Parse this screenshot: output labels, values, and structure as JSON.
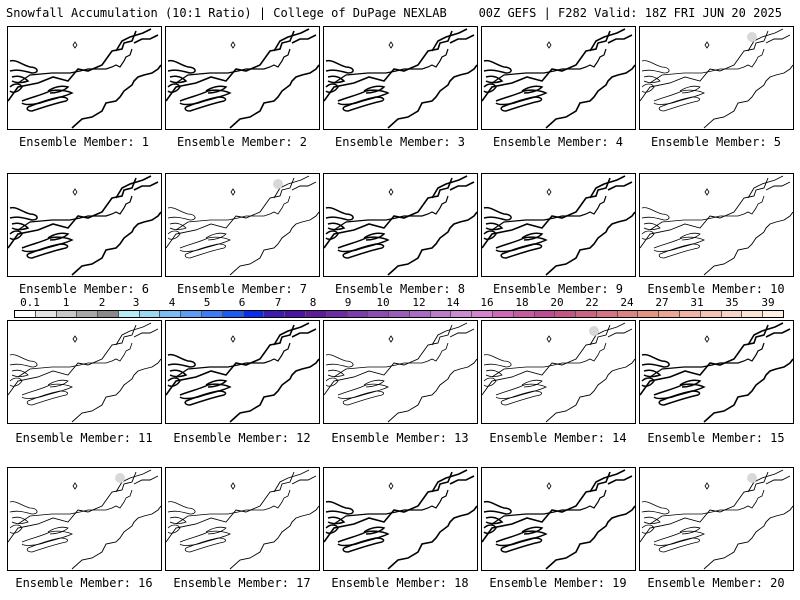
{
  "header": {
    "left_title": "Snowfall Accumulation (10:1 Ratio) | College of DuPage NEXLAB",
    "right_title": "00Z GEFS | F282 Valid: 18Z FRI JUN 20 2025"
  },
  "colorbar": {
    "ticks": [
      "0.1",
      "1",
      "2",
      "3",
      "4",
      "5",
      "6",
      "7",
      "8",
      "9",
      "10",
      "12",
      "14",
      "16",
      "18",
      "20",
      "22",
      "24",
      "27",
      "31",
      "35",
      "39"
    ],
    "colors": [
      "#ffffff",
      "#e4e4e4",
      "#c8c8c8",
      "#a8a8a8",
      "#8a8a8a",
      "#b4eef4",
      "#9cd8f4",
      "#7cbcf4",
      "#5c9cf4",
      "#3c7cf4",
      "#1c5cf4",
      "#0b2cee",
      "#3c1cb4",
      "#4c14a4",
      "#5c1c9c",
      "#6c2ca4",
      "#7c3cac",
      "#8c4cb4",
      "#9c5cbc",
      "#ac6cc4",
      "#bc7ccc",
      "#cc8cd4",
      "#d484cc",
      "#cc6cb4",
      "#c45ca4",
      "#bc4c94",
      "#c45484",
      "#cc6484",
      "#d47484",
      "#dc8484",
      "#e49484",
      "#eca494",
      "#f4b4a4",
      "#f4c4b4",
      "#f8d4c4",
      "#fce4d4",
      "#fef0e4"
    ]
  },
  "panels": [
    {
      "label": "Ensemble Member: 1",
      "style": "bold",
      "blob": false
    },
    {
      "label": "Ensemble Member: 2",
      "style": "bold",
      "blob": false
    },
    {
      "label": "Ensemble Member: 3",
      "style": "bold",
      "blob": false
    },
    {
      "label": "Ensemble Member: 4",
      "style": "bold",
      "blob": false
    },
    {
      "label": "Ensemble Member: 5",
      "style": "light",
      "blob": true
    },
    {
      "label": "Ensemble Member: 6",
      "style": "bold",
      "blob": false
    },
    {
      "label": "Ensemble Member: 7",
      "style": "light",
      "blob": true
    },
    {
      "label": "Ensemble Member: 8",
      "style": "bold",
      "blob": false
    },
    {
      "label": "Ensemble Member: 9",
      "style": "bold",
      "blob": false
    },
    {
      "label": "Ensemble Member: 10",
      "style": "light",
      "blob": false
    },
    {
      "label": "Ensemble Member: 11",
      "style": "light",
      "blob": false
    },
    {
      "label": "Ensemble Member: 12",
      "style": "bold",
      "blob": false
    },
    {
      "label": "Ensemble Member: 13",
      "style": "light",
      "blob": false
    },
    {
      "label": "Ensemble Member: 14",
      "style": "light",
      "blob": true
    },
    {
      "label": "Ensemble Member: 15",
      "style": "bold",
      "blob": false
    },
    {
      "label": "Ensemble Member: 16",
      "style": "light",
      "blob": true
    },
    {
      "label": "Ensemble Member: 17",
      "style": "light",
      "blob": false
    },
    {
      "label": "Ensemble Member: 18",
      "style": "bold",
      "blob": false
    },
    {
      "label": "Ensemble Member: 19",
      "style": "bold",
      "blob": false
    },
    {
      "label": "Ensemble Member: 20",
      "style": "light",
      "blob": true
    }
  ]
}
